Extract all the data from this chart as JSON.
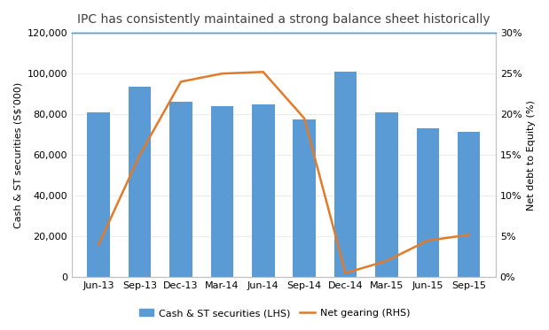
{
  "categories": [
    "Jun-13",
    "Sep-13",
    "Dec-13",
    "Mar-14",
    "Jun-14",
    "Sep-14",
    "Dec-14",
    "Mar-15",
    "Jun-15",
    "Sep-15"
  ],
  "bar_values": [
    81000,
    93500,
    86000,
    84000,
    85000,
    77500,
    101000,
    81000,
    73000,
    71500
  ],
  "line_values": [
    4.0,
    15.0,
    24.0,
    25.0,
    25.2,
    19.5,
    0.5,
    2.0,
    4.5,
    5.2
  ],
  "bar_color": "#5B9BD5",
  "line_color": "#E07B2A",
  "title": "IPC has consistently maintained a strong balance sheet historically",
  "ylabel_left": "Cash & ST securities (S$’000)",
  "ylabel_right": "Net debt to Equity (%)",
  "ylim_left": [
    0,
    120000
  ],
  "ylim_right": [
    0,
    30
  ],
  "yticks_left": [
    0,
    20000,
    40000,
    60000,
    80000,
    100000,
    120000
  ],
  "ytick_labels_left": [
    "0",
    "20,000",
    "40,000",
    "60,000",
    "80,000",
    "100,000",
    "120,000"
  ],
  "yticks_right": [
    0,
    5,
    10,
    15,
    20,
    25,
    30
  ],
  "ytick_labels_right": [
    "0%",
    "5%",
    "10%",
    "15%",
    "20%",
    "25%",
    "30%"
  ],
  "legend_bar": "Cash & ST securities (LHS)",
  "legend_line": "Net gearing (RHS)",
  "title_fontsize": 10,
  "axis_fontsize": 8,
  "tick_fontsize": 8,
  "legend_fontsize": 8,
  "background_color": "#FFFFFF",
  "top_border_color": "#5B9BD5",
  "spine_color": "#BFBFBF"
}
